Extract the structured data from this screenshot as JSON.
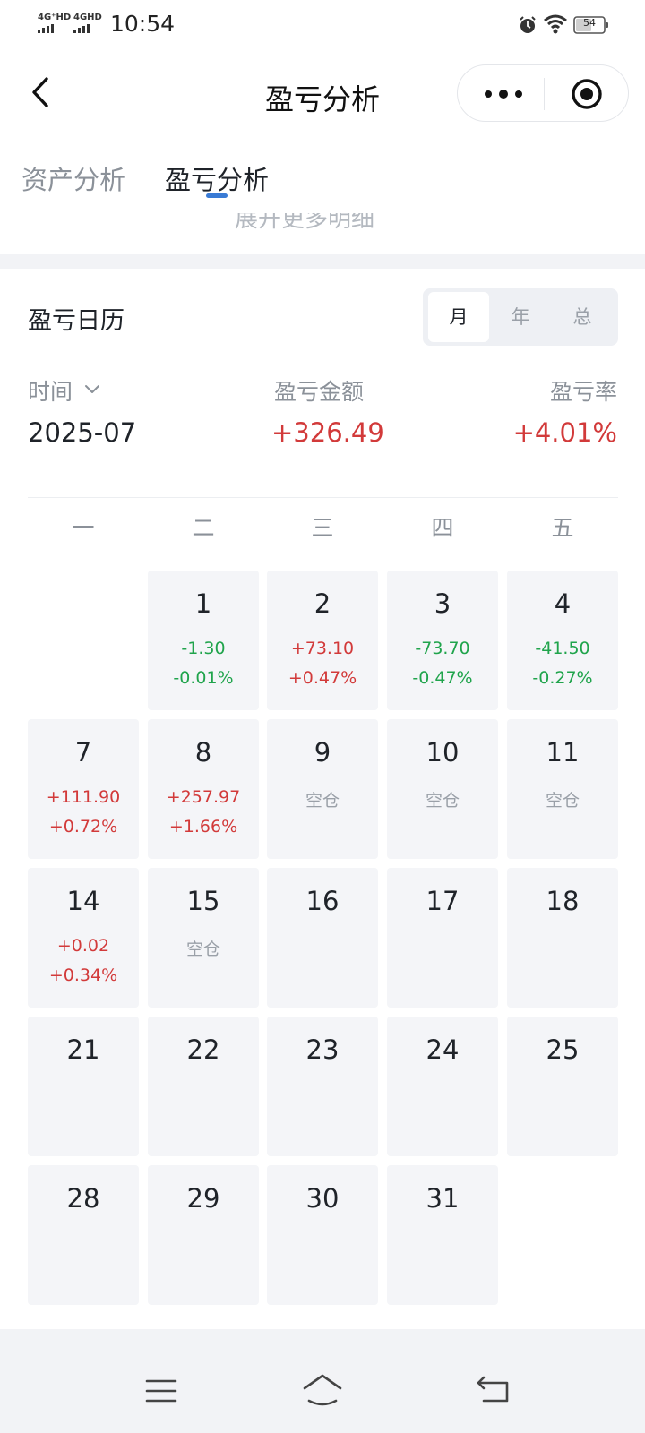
{
  "status_bar": {
    "signal_1": "4G⁺HD",
    "signal_2": "4GHD",
    "time": "10:54",
    "battery": "54"
  },
  "nav": {
    "title": "盈亏分析"
  },
  "tabs": [
    {
      "label": "资产分析"
    },
    {
      "label": "盈亏分析"
    }
  ],
  "peek_text": "展开更多明细",
  "calendar": {
    "title": "盈亏日历",
    "segments": [
      {
        "label": "月"
      },
      {
        "label": "年"
      },
      {
        "label": "总"
      }
    ],
    "headers": {
      "time": "时间",
      "amount": "盈亏金额",
      "rate": "盈亏率"
    },
    "summary": {
      "time": "2025-07",
      "amount": "+326.49",
      "rate": "+4.01%"
    },
    "weekdays": [
      "一",
      "二",
      "三",
      "四",
      "五"
    ],
    "cells": [
      {
        "day": "1",
        "amount": "-1.30",
        "rate": "-0.01%",
        "tone": "green"
      },
      {
        "day": "2",
        "amount": "+73.10",
        "rate": "+0.47%",
        "tone": "red"
      },
      {
        "day": "3",
        "amount": "-73.70",
        "rate": "-0.47%",
        "tone": "green"
      },
      {
        "day": "4",
        "amount": "-41.50",
        "rate": "-0.27%",
        "tone": "green"
      },
      {
        "day": "7",
        "amount": "+111.90",
        "rate": "+0.72%",
        "tone": "red"
      },
      {
        "day": "8",
        "amount": "+257.97",
        "rate": "+1.66%",
        "tone": "red"
      },
      {
        "day": "9",
        "amount": "空仓",
        "rate": "",
        "tone": "empty"
      },
      {
        "day": "10",
        "amount": "空仓",
        "rate": "",
        "tone": "empty"
      },
      {
        "day": "11",
        "amount": "空仓",
        "rate": "",
        "tone": "empty"
      },
      {
        "day": "14",
        "amount": "+0.02",
        "rate": "+0.34%",
        "tone": "red"
      },
      {
        "day": "15",
        "amount": "空仓",
        "rate": "",
        "tone": "empty"
      },
      {
        "day": "16",
        "amount": "",
        "rate": "",
        "tone": "none"
      },
      {
        "day": "17",
        "amount": "",
        "rate": "",
        "tone": "none"
      },
      {
        "day": "18",
        "amount": "",
        "rate": "",
        "tone": "none"
      },
      {
        "day": "21",
        "amount": "",
        "rate": "",
        "tone": "none"
      },
      {
        "day": "22",
        "amount": "",
        "rate": "",
        "tone": "none"
      },
      {
        "day": "23",
        "amount": "",
        "rate": "",
        "tone": "none"
      },
      {
        "day": "24",
        "amount": "",
        "rate": "",
        "tone": "none"
      },
      {
        "day": "25",
        "amount": "",
        "rate": "",
        "tone": "none"
      },
      {
        "day": "28",
        "amount": "",
        "rate": "",
        "tone": "none"
      },
      {
        "day": "29",
        "amount": "",
        "rate": "",
        "tone": "none"
      },
      {
        "day": "30",
        "amount": "",
        "rate": "",
        "tone": "none"
      },
      {
        "day": "31",
        "amount": "",
        "rate": "",
        "tone": "none"
      }
    ]
  },
  "colors": {
    "profit": "#d23a3a",
    "loss": "#20a44c",
    "accent": "#3a7bd5"
  },
  "icons": {
    "back": "chevron-left-icon",
    "more": "more-dots-icon",
    "target": "target-icon",
    "dropdown": "chevron-down-icon"
  }
}
